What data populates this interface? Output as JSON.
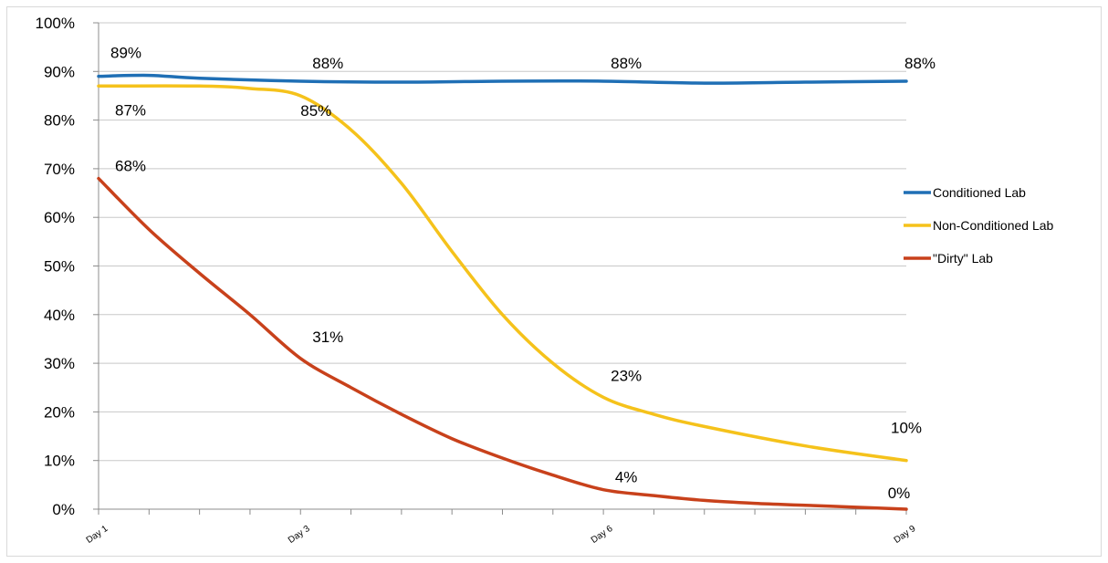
{
  "chart_data": {
    "type": "line",
    "title": "",
    "xlabel": "",
    "ylabel": "",
    "ylim": [
      0,
      100
    ],
    "y_ticks": [
      "0%",
      "10%",
      "20%",
      "30%",
      "40%",
      "50%",
      "60%",
      "70%",
      "80%",
      "90%",
      "100%"
    ],
    "x_tick_labels": [
      {
        "x": 1,
        "label": "Day 1"
      },
      {
        "x": 3,
        "label": "Day 3"
      },
      {
        "x": 6,
        "label": "Day 6"
      },
      {
        "x": 9,
        "label": "Day 9"
      }
    ],
    "x_minor_ticks": [
      1,
      1.5,
      2,
      2.5,
      3,
      3.5,
      4,
      4.5,
      5,
      5.5,
      6,
      6.5,
      7,
      7.5,
      8,
      8.5,
      9
    ],
    "xlim": [
      1,
      9
    ],
    "grid": true,
    "legend_position": "right",
    "series": [
      {
        "name": "Conditioned Lab",
        "color": "#1f6fb5",
        "points": [
          [
            1,
            89
          ],
          [
            1.5,
            89.2
          ],
          [
            2,
            88.6
          ],
          [
            3,
            88
          ],
          [
            4,
            87.8
          ],
          [
            5,
            88
          ],
          [
            6,
            88
          ],
          [
            7,
            87.6
          ],
          [
            8,
            87.8
          ],
          [
            9,
            88
          ]
        ],
        "labels": [
          {
            "x": 1,
            "y": 89,
            "text": "89%"
          },
          {
            "x": 3,
            "y": 88,
            "text": "88%"
          },
          {
            "x": 6,
            "y": 88,
            "text": "88%"
          },
          {
            "x": 9,
            "y": 88,
            "text": "88%"
          }
        ]
      },
      {
        "name": "Non-Conditioned Lab",
        "color": "#f5c21b",
        "points": [
          [
            1,
            87
          ],
          [
            2,
            87
          ],
          [
            2.5,
            86.5
          ],
          [
            3,
            85
          ],
          [
            3.5,
            78
          ],
          [
            4,
            67
          ],
          [
            4.5,
            53
          ],
          [
            5,
            40
          ],
          [
            5.5,
            30
          ],
          [
            6,
            23
          ],
          [
            6.5,
            19.5
          ],
          [
            7,
            17
          ],
          [
            8,
            13
          ],
          [
            9,
            10
          ]
        ],
        "labels": [
          {
            "x": 1,
            "y": 87,
            "text": "87%"
          },
          {
            "x": 3,
            "y": 85,
            "text": "85%"
          },
          {
            "x": 6,
            "y": 23,
            "text": "23%"
          },
          {
            "x": 9,
            "y": 10,
            "text": "10%"
          }
        ]
      },
      {
        "name": "\"Dirty\" Lab",
        "color": "#c8411b",
        "points": [
          [
            1,
            68
          ],
          [
            1.5,
            57.5
          ],
          [
            2,
            48.5
          ],
          [
            2.5,
            40
          ],
          [
            3,
            31
          ],
          [
            3.5,
            25
          ],
          [
            4,
            19.5
          ],
          [
            4.5,
            14.5
          ],
          [
            5,
            10.5
          ],
          [
            5.5,
            7
          ],
          [
            6,
            4
          ],
          [
            6.5,
            2.8
          ],
          [
            7,
            1.8
          ],
          [
            7.5,
            1.2
          ],
          [
            8,
            0.8
          ],
          [
            8.5,
            0.4
          ],
          [
            9,
            0
          ]
        ],
        "labels": [
          {
            "x": 1,
            "y": 68,
            "text": "68%"
          },
          {
            "x": 3,
            "y": 31,
            "text": "31%"
          },
          {
            "x": 6,
            "y": 4,
            "text": "4%"
          },
          {
            "x": 9,
            "y": 0,
            "text": "0%"
          }
        ]
      }
    ]
  }
}
